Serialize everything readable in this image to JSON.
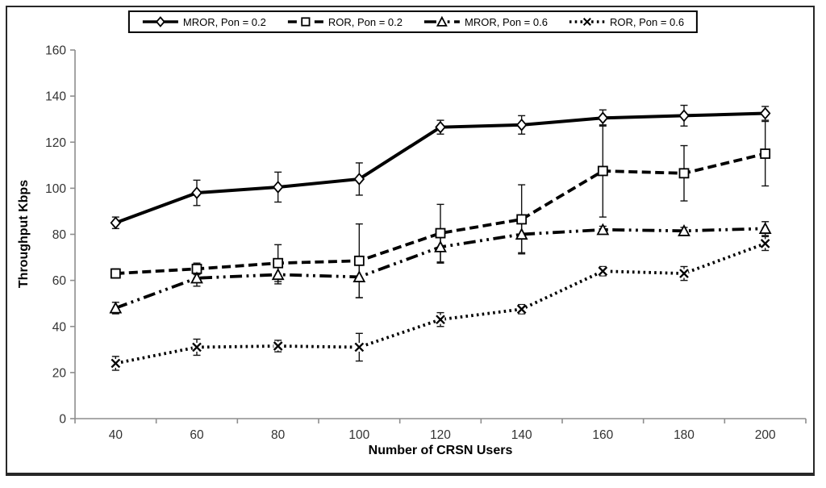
{
  "chart_data": {
    "type": "line",
    "title": "",
    "xlabel": "Number of CRSN Users",
    "ylabel": "Throughput Kbps",
    "x": [
      40,
      60,
      80,
      100,
      120,
      140,
      160,
      180,
      200
    ],
    "ylim": [
      0,
      160
    ],
    "y_ticks": [
      0,
      20,
      40,
      60,
      80,
      100,
      120,
      140,
      160
    ],
    "grid": false,
    "legend_position": "top-center",
    "error_bars": true,
    "colors": {
      "series": "#000000",
      "axis": "#8e8e8e",
      "tick_label": "#333333",
      "legend_border": "#000000",
      "background": "#ffffff"
    },
    "series": [
      {
        "name": "MROR, Pon = 0.2",
        "marker": "diamond",
        "line": "solid",
        "values": [
          85,
          98,
          100.5,
          104,
          126.5,
          127.5,
          130.5,
          131.5,
          132.5
        ],
        "errors": [
          2.5,
          5.5,
          6.5,
          7,
          3,
          4,
          3.5,
          4.5,
          3
        ]
      },
      {
        "name": "ROR, Pon = 0.2",
        "marker": "square",
        "line": "dashed",
        "values": [
          63,
          65,
          67.5,
          68.5,
          80.5,
          86.5,
          107.5,
          106.5,
          115
        ],
        "errors": [
          2,
          2.5,
          8,
          16,
          12.5,
          15,
          20,
          12,
          14
        ]
      },
      {
        "name": "MROR, Pon = 0.6",
        "marker": "triangle",
        "line": "dashdotdot",
        "values": [
          48,
          61,
          62.5,
          61.5,
          74.5,
          80,
          82,
          81.5,
          82.5
        ],
        "errors": [
          2.5,
          3.5,
          4,
          9,
          7,
          8,
          1.5,
          1.5,
          3
        ]
      },
      {
        "name": "ROR, Pon = 0.6",
        "marker": "x",
        "line": "dotted",
        "values": [
          24,
          31,
          31.5,
          31,
          43,
          47.5,
          64,
          63,
          76
        ],
        "errors": [
          3,
          3.5,
          2.5,
          6,
          3,
          2,
          2,
          3,
          3
        ]
      }
    ]
  }
}
